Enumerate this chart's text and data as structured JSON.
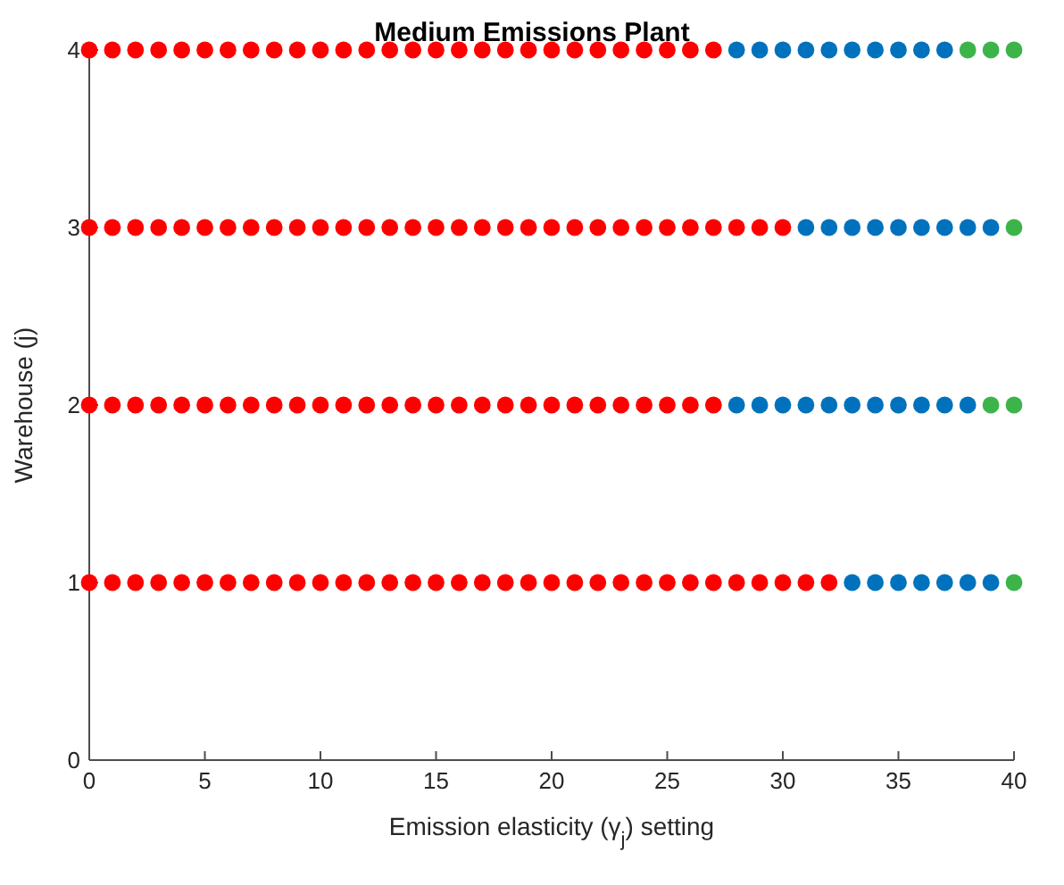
{
  "chart_data": {
    "type": "scatter",
    "title": "Medium Emissions Plant",
    "xlabel": "Emission elasticity (γ$_{j}$) setting",
    "ylabel": "Warehouse (j)",
    "xlim": [
      0,
      40
    ],
    "ylim": [
      0,
      4
    ],
    "xticks": [
      0,
      5,
      10,
      15,
      20,
      25,
      30,
      35,
      40
    ],
    "yticks": [
      0,
      1,
      2,
      3,
      4
    ],
    "grid": false,
    "marker": "circle",
    "series": [
      {
        "color": "#ff0000",
        "x": [
          0,
          1,
          2,
          3,
          4,
          5,
          6,
          7,
          8,
          9,
          10,
          11,
          12,
          13,
          14,
          15,
          16,
          17,
          18,
          19,
          20,
          21,
          22,
          23,
          24,
          25,
          26,
          27,
          28,
          29,
          30,
          31,
          32
        ],
        "values": [
          1,
          1,
          1,
          1,
          1,
          1,
          1,
          1,
          1,
          1,
          1,
          1,
          1,
          1,
          1,
          1,
          1,
          1,
          1,
          1,
          1,
          1,
          1,
          1,
          1,
          1,
          1,
          1,
          1,
          1,
          1,
          1,
          1
        ]
      },
      {
        "color": "#0072bd",
        "x": [
          33,
          34,
          35,
          36,
          37,
          38,
          39
        ],
        "values": [
          1,
          1,
          1,
          1,
          1,
          1,
          1
        ]
      },
      {
        "color": "#3cb44a",
        "x": [
          40
        ],
        "values": [
          1
        ]
      },
      {
        "color": "#ff0000",
        "x": [
          0,
          1,
          2,
          3,
          4,
          5,
          6,
          7,
          8,
          9,
          10,
          11,
          12,
          13,
          14,
          15,
          16,
          17,
          18,
          19,
          20,
          21,
          22,
          23,
          24,
          25,
          26,
          27
        ],
        "values": [
          2,
          2,
          2,
          2,
          2,
          2,
          2,
          2,
          2,
          2,
          2,
          2,
          2,
          2,
          2,
          2,
          2,
          2,
          2,
          2,
          2,
          2,
          2,
          2,
          2,
          2,
          2,
          2
        ]
      },
      {
        "color": "#0072bd",
        "x": [
          28,
          29,
          30,
          31,
          32,
          33,
          34,
          35,
          36,
          37,
          38
        ],
        "values": [
          2,
          2,
          2,
          2,
          2,
          2,
          2,
          2,
          2,
          2,
          2
        ]
      },
      {
        "color": "#3cb44a",
        "x": [
          39,
          40
        ],
        "values": [
          2,
          2
        ]
      },
      {
        "color": "#ff0000",
        "x": [
          0,
          1,
          2,
          3,
          4,
          5,
          6,
          7,
          8,
          9,
          10,
          11,
          12,
          13,
          14,
          15,
          16,
          17,
          18,
          19,
          20,
          21,
          22,
          23,
          24,
          25,
          26,
          27,
          28,
          29,
          30
        ],
        "values": [
          3,
          3,
          3,
          3,
          3,
          3,
          3,
          3,
          3,
          3,
          3,
          3,
          3,
          3,
          3,
          3,
          3,
          3,
          3,
          3,
          3,
          3,
          3,
          3,
          3,
          3,
          3,
          3,
          3,
          3,
          3
        ]
      },
      {
        "color": "#0072bd",
        "x": [
          31,
          32,
          33,
          34,
          35,
          36,
          37,
          38,
          39
        ],
        "values": [
          3,
          3,
          3,
          3,
          3,
          3,
          3,
          3,
          3
        ]
      },
      {
        "color": "#3cb44a",
        "x": [
          40
        ],
        "values": [
          3
        ]
      },
      {
        "color": "#ff0000",
        "x": [
          0,
          1,
          2,
          3,
          4,
          5,
          6,
          7,
          8,
          9,
          10,
          11,
          12,
          13,
          14,
          15,
          16,
          17,
          18,
          19,
          20,
          21,
          22,
          23,
          24,
          25,
          26,
          27
        ],
        "values": [
          4,
          4,
          4,
          4,
          4,
          4,
          4,
          4,
          4,
          4,
          4,
          4,
          4,
          4,
          4,
          4,
          4,
          4,
          4,
          4,
          4,
          4,
          4,
          4,
          4,
          4,
          4,
          4
        ]
      },
      {
        "color": "#0072bd",
        "x": [
          28,
          29,
          30,
          31,
          32,
          33,
          34,
          35,
          36,
          37
        ],
        "values": [
          4,
          4,
          4,
          4,
          4,
          4,
          4,
          4,
          4,
          4
        ]
      },
      {
        "color": "#3cb44a",
        "x": [
          38,
          39,
          40
        ],
        "values": [
          4,
          4,
          4
        ]
      }
    ]
  }
}
